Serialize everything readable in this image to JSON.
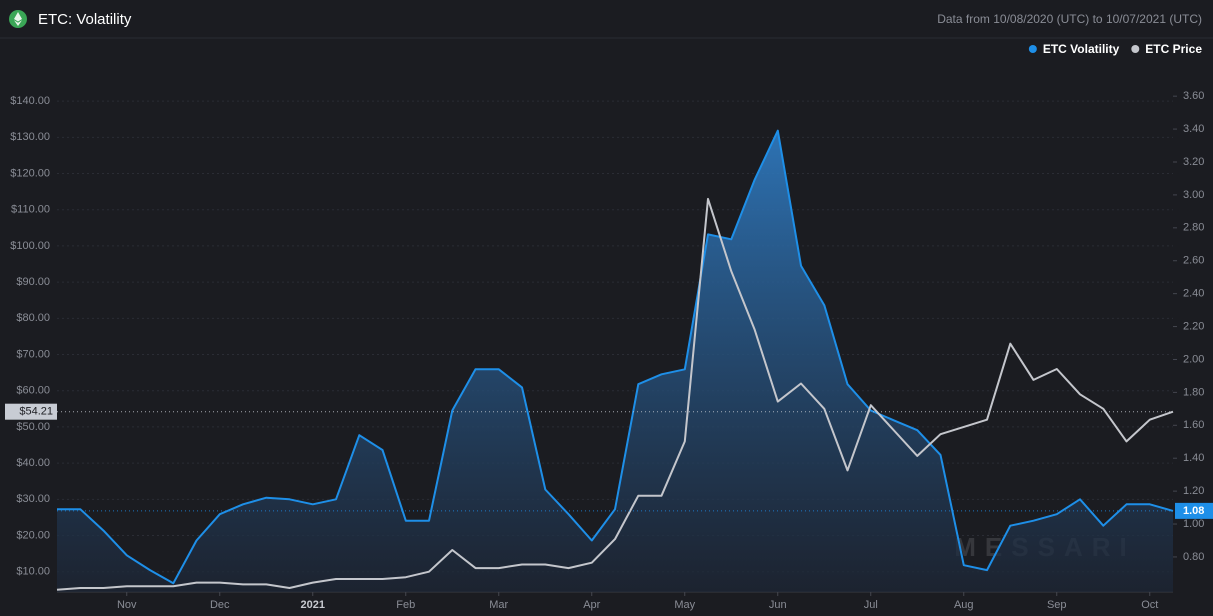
{
  "chart_data": {
    "type": "line",
    "title": "ETC: Volatility",
    "subtitle": "Data from 10/08/2020 (UTC) to 10/07/2021 (UTC)",
    "watermark": "MESSARI",
    "legend": "top-right",
    "grid": true,
    "categories": [
      null,
      null,
      null,
      "Nov",
      null,
      null,
      null,
      "Dec",
      null,
      null,
      null,
      "2021",
      null,
      null,
      null,
      "Feb",
      null,
      null,
      null,
      "Mar",
      null,
      null,
      null,
      "Apr",
      null,
      null,
      null,
      "May",
      null,
      null,
      null,
      "Jun",
      null,
      null,
      null,
      "Jul",
      null,
      null,
      null,
      "Aug",
      null,
      null,
      null,
      "Sep",
      null,
      null,
      null,
      "Oct",
      null
    ],
    "ylim": [
      4.4,
      148.6
    ],
    "yticks": [
      {
        "value": 10,
        "label": "$10.00"
      },
      {
        "value": 20,
        "label": "$20.00"
      },
      {
        "value": 30,
        "label": "$30.00"
      },
      {
        "value": 40,
        "label": "$40.00"
      },
      {
        "value": 50,
        "label": "$50.00"
      },
      {
        "value": 60,
        "label": "$60.00"
      },
      {
        "value": 70,
        "label": "$70.00"
      },
      {
        "value": 80,
        "label": "$80.00"
      },
      {
        "value": 90,
        "label": "$90.00"
      },
      {
        "value": 100,
        "label": "$100.00"
      },
      {
        "value": 110,
        "label": "$110.00"
      },
      {
        "value": 120,
        "label": "$120.00"
      },
      {
        "value": 130,
        "label": "$130.00"
      },
      {
        "value": 140,
        "label": "$140.00"
      }
    ],
    "y2lim": [
      0.587,
      3.759
    ],
    "y2ticks": [
      {
        "value": 0.8,
        "label": "0.80"
      },
      {
        "value": 1,
        "label": "1.00"
      },
      {
        "value": 1.2,
        "label": "1.20"
      },
      {
        "value": 1.4,
        "label": "1.40"
      },
      {
        "value": 1.6,
        "label": "1.60"
      },
      {
        "value": 1.8,
        "label": "1.80"
      },
      {
        "value": 2,
        "label": "2.00"
      },
      {
        "value": 2.2,
        "label": "2.20"
      },
      {
        "value": 2.4,
        "label": "2.40"
      },
      {
        "value": 2.6,
        "label": "2.60"
      },
      {
        "value": 2.8,
        "label": "2.80"
      },
      {
        "value": 3,
        "label": "3.00"
      },
      {
        "value": 3.2,
        "label": "3.20"
      },
      {
        "value": 3.4,
        "label": "3.40"
      },
      {
        "value": 3.6,
        "label": "3.60"
      }
    ],
    "series": [
      {
        "name": "ETC Volatility",
        "color": "#1e8fe8",
        "axis": "y2",
        "current_label": "1.08",
        "values": [
          1.09,
          1.09,
          0.96,
          0.81,
          0.72,
          0.64,
          0.9,
          1.06,
          1.12,
          1.16,
          1.15,
          1.12,
          1.15,
          1.54,
          1.45,
          1.02,
          1.02,
          1.69,
          1.94,
          1.94,
          1.83,
          1.21,
          1.06,
          0.9,
          1.09,
          1.85,
          1.91,
          1.94,
          2.76,
          2.73,
          3.09,
          3.39,
          2.57,
          2.33,
          1.85,
          1.69,
          1.63,
          1.57,
          1.42,
          0.75,
          0.72,
          0.99,
          1.02,
          1.06,
          1.15,
          0.99,
          1.12,
          1.12,
          1.08
        ]
      },
      {
        "name": "ETC Price",
        "color": "#c4c6cc",
        "axis": "y",
        "current_label": "$54.21",
        "values": [
          5,
          5.5,
          5.5,
          6,
          6,
          6,
          7,
          7,
          6.5,
          6.5,
          5.5,
          7,
          8,
          8,
          8,
          8.5,
          10,
          16,
          11,
          11,
          12,
          12,
          11,
          12.5,
          19,
          31,
          31,
          46,
          113,
          93,
          77,
          57,
          62,
          55,
          38,
          56,
          49,
          42,
          48,
          50,
          52,
          73,
          63,
          66,
          59,
          55,
          46,
          52,
          54.21
        ]
      }
    ]
  }
}
